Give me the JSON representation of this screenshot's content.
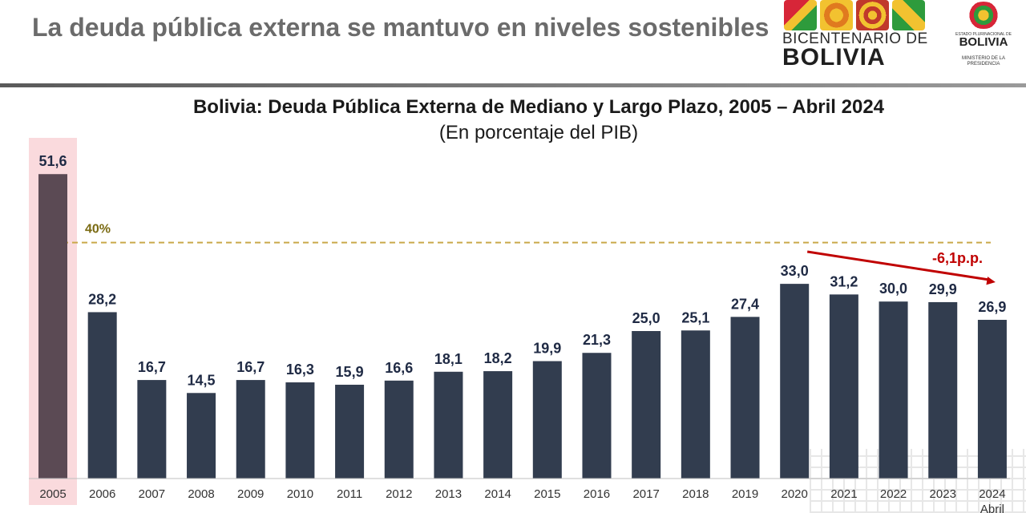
{
  "header": {
    "title": "La deuda pública externa se mantuvo en niveles sostenibles",
    "logo_bicentenario_line1": "BICENTENARIO DE",
    "logo_bicentenario_line2": "BOLIVIA",
    "logo_ministerio_small_top": "ESTADO PLURINACIONAL DE",
    "logo_ministerio_name": "BOLIVIA",
    "logo_ministerio_small_bottom": "MINISTERIO DE LA PRESIDENCIA"
  },
  "chart_data": {
    "type": "bar",
    "title": "Bolivia: Deuda Pública Externa de Mediano y Largo Plazo, 2005 – Abril 2024",
    "subtitle": "(En porcentaje del PIB)",
    "xlabel": "",
    "ylabel": "",
    "ylim": [
      0,
      55
    ],
    "categories": [
      "2005",
      "2006",
      "2007",
      "2008",
      "2009",
      "2010",
      "2011",
      "2012",
      "2013",
      "2014",
      "2015",
      "2016",
      "2017",
      "2018",
      "2019",
      "2020",
      "2021",
      "2022",
      "2023",
      "2024"
    ],
    "category_sublabels": {
      "2024": "Abril"
    },
    "values": [
      51.6,
      28.2,
      16.7,
      14.5,
      16.7,
      16.3,
      15.9,
      16.6,
      18.1,
      18.2,
      19.9,
      21.3,
      25.0,
      25.1,
      27.4,
      33.0,
      31.2,
      30.0,
      29.9,
      26.9
    ],
    "value_labels": [
      "51,6",
      "28,2",
      "16,7",
      "14,5",
      "16,7",
      "16,3",
      "15,9",
      "16,6",
      "18,1",
      "18,2",
      "19,9",
      "21,3",
      "25,0",
      "25,1",
      "27,4",
      "33,0",
      "31,2",
      "30,0",
      "29,9",
      "26,9"
    ],
    "highlight_category": "2005",
    "reference_line": {
      "value": 40,
      "label": "40%",
      "style": "dashed"
    },
    "trend_annotation": {
      "from": "2020",
      "to": "2024",
      "label": "-6,1p.p."
    },
    "grid": false,
    "legend": "none",
    "colors": {
      "bar": "#323d4f",
      "highlight_bar": "#5b4a54",
      "highlight_band": "#fadadd",
      "reference_line": "#c9a94a",
      "trend_arrow": "#c00000",
      "value_label": "#1f2a44"
    }
  }
}
